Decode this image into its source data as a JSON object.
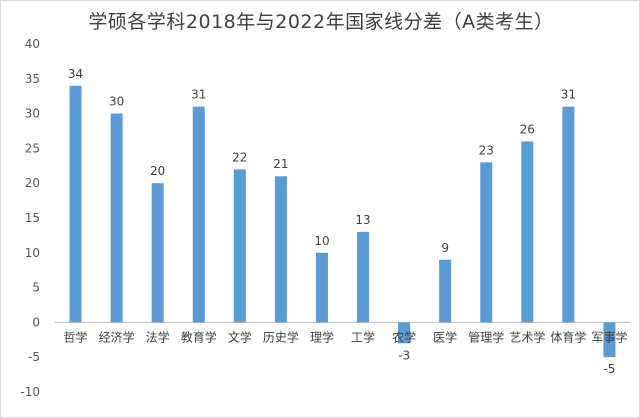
{
  "chart_data": {
    "type": "bar",
    "title": "学硕各学科2018年与2022年国家线分差（A类考生）",
    "categories": [
      "哲学",
      "经济学",
      "法学",
      "教育学",
      "文学",
      "历史学",
      "理学",
      "工学",
      "农学",
      "医学",
      "管理学",
      "艺术学",
      "体育学",
      "军事学"
    ],
    "values": [
      34,
      30,
      20,
      31,
      22,
      21,
      10,
      13,
      -3,
      9,
      23,
      26,
      31,
      -5
    ],
    "ylim": [
      -10,
      40
    ],
    "yticks": [
      -10,
      -5,
      0,
      5,
      10,
      15,
      20,
      25,
      30,
      35,
      40
    ],
    "grid": false,
    "bar_color": "#5b9bd5",
    "xlabel": "",
    "ylabel": ""
  }
}
